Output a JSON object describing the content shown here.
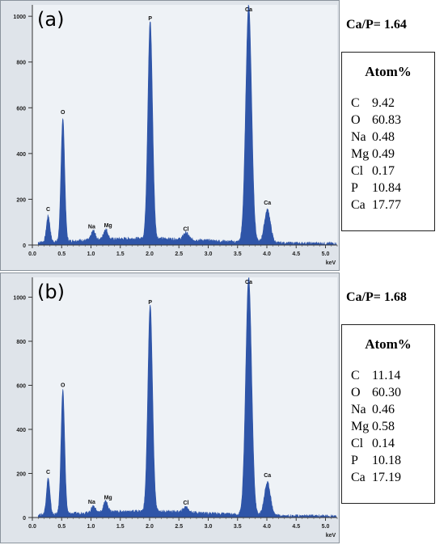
{
  "chart_data": [
    {
      "type": "area",
      "panel_label": "(a)",
      "xlabel": "keV",
      "ylabel": "",
      "xlim": [
        0,
        5.2
      ],
      "ylim": [
        0,
        1050
      ],
      "x_ticks": [
        "0.0",
        "0.5",
        "1.0",
        "1.5",
        "2.0",
        "2.5",
        "3.0",
        "3.5",
        "4.0",
        "4.5",
        "5.0"
      ],
      "y_ticks": [
        "200",
        "400",
        "600",
        "800",
        "1000"
      ],
      "background": "#eef2f6",
      "fill_color": "#2f55a8",
      "peaks": [
        {
          "label": "C",
          "energy": 0.27,
          "counts": 115
        },
        {
          "label": "O",
          "energy": 0.52,
          "counts": 540
        },
        {
          "label": "Na",
          "energy": 1.04,
          "counts": 40
        },
        {
          "label": "Mg",
          "energy": 1.25,
          "counts": 45
        },
        {
          "label": "P",
          "energy": 2.01,
          "counts": 950
        },
        {
          "label": "Cl",
          "energy": 2.62,
          "counts": 30
        },
        {
          "label": "Ca",
          "energy": 3.69,
          "counts": 1040
        },
        {
          "label": "Ca",
          "energy": 4.01,
          "counts": 145
        }
      ],
      "ratio_text": "Ca/P= 1.64",
      "table_title": "Atom%",
      "composition": [
        {
          "element": "C",
          "value": "9.42"
        },
        {
          "element": "O",
          "value": "60.83"
        },
        {
          "element": "Na",
          "value": "0.48"
        },
        {
          "element": "Mg",
          "value": "0.49"
        },
        {
          "element": "Cl",
          "value": "0.17"
        },
        {
          "element": "P",
          "value": "10.84"
        },
        {
          "element": "Ca",
          "value": "17.77"
        }
      ]
    },
    {
      "type": "area",
      "panel_label": "(b)",
      "xlabel": "keV",
      "ylabel": "",
      "xlim": [
        0,
        5.2
      ],
      "ylim": [
        0,
        1090
      ],
      "x_ticks": [
        "0.0",
        "0.5",
        "1.0",
        "1.5",
        "2.0",
        "2.5",
        "3.0",
        "3.5",
        "4.0",
        "4.5",
        "5.0"
      ],
      "y_ticks": [
        "200",
        "400",
        "600",
        "800",
        "1000"
      ],
      "background": "#eef2f6",
      "fill_color": "#2f55a8",
      "peaks": [
        {
          "label": "C",
          "energy": 0.27,
          "counts": 165
        },
        {
          "label": "O",
          "energy": 0.52,
          "counts": 560
        },
        {
          "label": "Na",
          "energy": 1.04,
          "counts": 30
        },
        {
          "label": "Mg",
          "energy": 1.25,
          "counts": 50
        },
        {
          "label": "P",
          "energy": 2.01,
          "counts": 935
        },
        {
          "label": "Cl",
          "energy": 2.62,
          "counts": 25
        },
        {
          "label": "Ca",
          "energy": 3.69,
          "counts": 1080
        },
        {
          "label": "Ca",
          "energy": 4.01,
          "counts": 150
        }
      ],
      "ratio_text": "Ca/P= 1.68",
      "table_title": "Atom%",
      "composition": [
        {
          "element": "C",
          "value": "11.14"
        },
        {
          "element": "O",
          "value": "60.30"
        },
        {
          "element": "Na",
          "value": "0.46"
        },
        {
          "element": "Mg",
          "value": "0.58"
        },
        {
          "element": "Cl",
          "value": "0.14"
        },
        {
          "element": "P",
          "value": "10.18"
        },
        {
          "element": "Ca",
          "value": "17.19"
        }
      ]
    }
  ]
}
